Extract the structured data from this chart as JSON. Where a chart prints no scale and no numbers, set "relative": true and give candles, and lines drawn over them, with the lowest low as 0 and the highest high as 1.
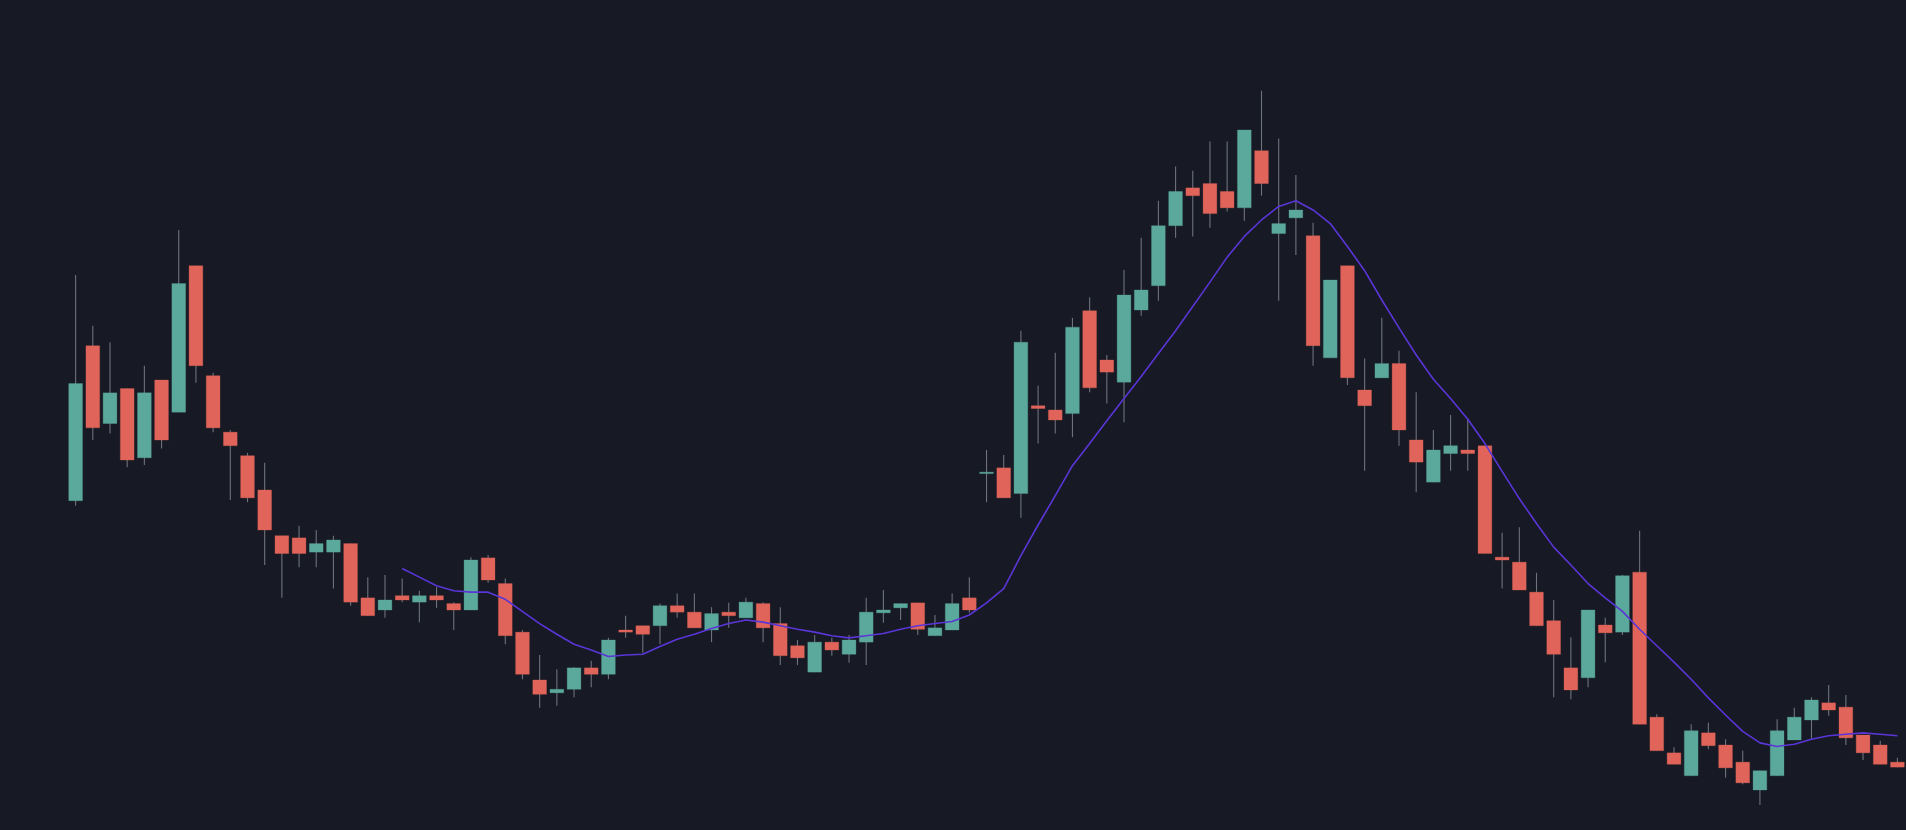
{
  "chart_data": {
    "type": "candlestick",
    "relative": true,
    "categories": [
      null,
      null,
      null,
      null,
      null,
      null,
      null,
      null,
      null,
      null,
      null,
      null,
      null,
      null,
      null,
      null,
      null,
      null,
      null,
      null,
      null,
      null,
      null,
      null,
      null,
      null,
      null,
      null,
      null,
      null,
      null,
      null,
      null,
      null,
      null,
      null,
      null,
      null,
      null,
      null,
      null,
      null,
      null,
      null,
      null,
      null,
      null,
      null,
      null,
      null,
      null,
      null,
      null,
      null,
      null,
      null,
      null,
      null,
      null,
      null,
      null,
      null,
      null,
      null,
      null,
      null,
      null,
      null,
      null,
      null,
      null,
      null,
      null,
      null,
      null,
      null,
      null,
      null,
      null,
      null,
      null,
      null,
      null,
      null,
      null,
      null,
      null,
      null,
      null,
      null,
      null,
      null,
      null,
      null,
      null,
      null,
      null,
      null,
      null,
      null,
      null,
      null,
      null,
      null,
      null,
      null,
      null
    ],
    "ohlc": [
      [
        0.426,
        0.742,
        0.419,
        0.59
      ],
      [
        0.643,
        0.671,
        0.511,
        0.528
      ],
      [
        0.534,
        0.648,
        0.52,
        0.577
      ],
      [
        0.583,
        0.583,
        0.473,
        0.483
      ],
      [
        0.486,
        0.615,
        0.476,
        0.577
      ],
      [
        0.595,
        0.595,
        0.499,
        0.511
      ],
      [
        0.55,
        0.805,
        0.55,
        0.73
      ],
      [
        0.755,
        0.755,
        0.591,
        0.615
      ],
      [
        0.601,
        0.605,
        0.522,
        0.528
      ],
      [
        0.522,
        0.525,
        0.427,
        0.503
      ],
      [
        0.489,
        0.493,
        0.424,
        0.43
      ],
      [
        0.441,
        0.479,
        0.336,
        0.385
      ],
      [
        0.377,
        0.377,
        0.29,
        0.352
      ],
      [
        0.374,
        0.391,
        0.333,
        0.352
      ],
      [
        0.354,
        0.385,
        0.333,
        0.366
      ],
      [
        0.354,
        0.377,
        0.303,
        0.371
      ],
      [
        0.366,
        0.366,
        0.279,
        0.284
      ],
      [
        0.29,
        0.319,
        0.265,
        0.265
      ],
      [
        0.273,
        0.322,
        0.262,
        0.287
      ],
      [
        0.293,
        0.317,
        0.284,
        0.287
      ],
      [
        0.284,
        0.3,
        0.256,
        0.293
      ],
      [
        0.293,
        0.305,
        0.276,
        0.287
      ],
      [
        0.282,
        0.284,
        0.245,
        0.273
      ],
      [
        0.273,
        0.347,
        0.273,
        0.343
      ],
      [
        0.346,
        0.35,
        0.311,
        0.315
      ],
      [
        0.31,
        0.317,
        0.225,
        0.237
      ],
      [
        0.242,
        0.245,
        0.176,
        0.183
      ],
      [
        0.175,
        0.21,
        0.136,
        0.155
      ],
      [
        0.157,
        0.19,
        0.139,
        0.162
      ],
      [
        0.162,
        0.193,
        0.151,
        0.192
      ],
      [
        0.192,
        0.202,
        0.165,
        0.183
      ],
      [
        0.183,
        0.234,
        0.176,
        0.231
      ],
      [
        0.245,
        0.265,
        0.234,
        0.242
      ],
      [
        0.251,
        0.251,
        0.213,
        0.239
      ],
      [
        0.251,
        0.282,
        0.225,
        0.279
      ],
      [
        0.279,
        0.296,
        0.262,
        0.27
      ],
      [
        0.27,
        0.296,
        0.248,
        0.248
      ],
      [
        0.245,
        0.277,
        0.228,
        0.268
      ],
      [
        0.27,
        0.283,
        0.248,
        0.265
      ],
      [
        0.262,
        0.29,
        0.262,
        0.284
      ],
      [
        0.282,
        0.284,
        0.228,
        0.248
      ],
      [
        0.254,
        0.277,
        0.196,
        0.209
      ],
      [
        0.223,
        0.231,
        0.196,
        0.206
      ],
      [
        0.186,
        0.238,
        0.186,
        0.228
      ],
      [
        0.228,
        0.234,
        0.209,
        0.217
      ],
      [
        0.211,
        0.238,
        0.199,
        0.231
      ],
      [
        0.228,
        0.29,
        0.196,
        0.27
      ],
      [
        0.269,
        0.301,
        0.255,
        0.273
      ],
      [
        0.276,
        0.282,
        0.259,
        0.282
      ],
      [
        0.283,
        0.283,
        0.238,
        0.246
      ],
      [
        0.237,
        0.266,
        0.237,
        0.248
      ],
      [
        0.245,
        0.296,
        0.245,
        0.282
      ],
      [
        0.29,
        0.319,
        0.269,
        0.273
      ],
      [
        0.464,
        0.497,
        0.424,
        0.466
      ],
      [
        0.472,
        0.49,
        0.43,
        0.43
      ],
      [
        0.436,
        0.664,
        0.402,
        0.648
      ],
      [
        0.559,
        0.587,
        0.506,
        0.555
      ],
      [
        0.553,
        0.633,
        0.52,
        0.539
      ],
      [
        0.548,
        0.682,
        0.515,
        0.669
      ],
      [
        0.692,
        0.711,
        0.578,
        0.584
      ],
      [
        0.623,
        0.63,
        0.562,
        0.606
      ],
      [
        0.592,
        0.749,
        0.536,
        0.714
      ],
      [
        0.693,
        0.794,
        0.685,
        0.721
      ],
      [
        0.727,
        0.846,
        0.706,
        0.811
      ],
      [
        0.811,
        0.894,
        0.794,
        0.859
      ],
      [
        0.864,
        0.888,
        0.796,
        0.853
      ],
      [
        0.87,
        0.929,
        0.808,
        0.828
      ],
      [
        0.859,
        0.929,
        0.831,
        0.836
      ],
      [
        0.836,
        0.945,
        0.818,
        0.945
      ],
      [
        0.916,
        1,
        0.853,
        0.87
      ],
      [
        0.8,
        0.933,
        0.706,
        0.814
      ],
      [
        0.822,
        0.882,
        0.77,
        0.833
      ],
      [
        0.797,
        0.815,
        0.615,
        0.643
      ],
      [
        0.626,
        0.735,
        0.626,
        0.735
      ],
      [
        0.755,
        0.755,
        0.588,
        0.598
      ],
      [
        0.581,
        0.625,
        0.468,
        0.559
      ],
      [
        0.598,
        0.682,
        0.598,
        0.618
      ],
      [
        0.618,
        0.636,
        0.503,
        0.525
      ],
      [
        0.511,
        0.578,
        0.438,
        0.48
      ],
      [
        0.452,
        0.525,
        0.452,
        0.497
      ],
      [
        0.492,
        0.546,
        0.468,
        0.503
      ],
      [
        0.497,
        0.541,
        0.468,
        0.492
      ],
      [
        0.503,
        0.503,
        0.352,
        0.352
      ],
      [
        0.347,
        0.381,
        0.303,
        0.343
      ],
      [
        0.34,
        0.389,
        0.301,
        0.301
      ],
      [
        0.298,
        0.325,
        0.251,
        0.251
      ],
      [
        0.258,
        0.287,
        0.151,
        0.211
      ],
      [
        0.192,
        0.235,
        0.148,
        0.161
      ],
      [
        0.178,
        0.273,
        0.165,
        0.273
      ],
      [
        0.252,
        0.262,
        0.2,
        0.241
      ],
      [
        0.242,
        0.322,
        0.238,
        0.321
      ],
      [
        0.326,
        0.384,
        0.113,
        0.113
      ],
      [
        0.123,
        0.127,
        0.076,
        0.076
      ],
      [
        0.073,
        0.081,
        0.057,
        0.057
      ],
      [
        0.041,
        0.113,
        0.041,
        0.104
      ],
      [
        0.101,
        0.115,
        0.078,
        0.083
      ],
      [
        0.084,
        0.092,
        0.038,
        0.052
      ],
      [
        0.06,
        0.076,
        0.029,
        0.031
      ],
      [
        0.021,
        0.048,
        0,
        0.048
      ],
      [
        0.041,
        0.12,
        0.041,
        0.104
      ],
      [
        0.091,
        0.136,
        0.091,
        0.123
      ],
      [
        0.119,
        0.151,
        0.092,
        0.147
      ],
      [
        0.143,
        0.168,
        0.125,
        0.133
      ],
      [
        0.137,
        0.154,
        0.084,
        0.094
      ],
      [
        0.098,
        0.098,
        0.063,
        0.073
      ],
      [
        0.084,
        0.09,
        0.057,
        0.057
      ],
      [
        0.06,
        0.066,
        0.053,
        0.053
      ]
    ],
    "colors": [
      "#5ba89c",
      "#e0645a",
      "#5ba89c",
      "#e0645a",
      "#5ba89c",
      "#e0645a",
      "#5ba89c",
      "#e0645a",
      "#e0645a",
      "#e0645a",
      "#e0645a",
      "#e0645a",
      "#e0645a",
      "#e0645a",
      "#5ba89c",
      "#5ba89c",
      "#e0645a",
      "#e0645a",
      "#5ba89c",
      "#e0645a",
      "#5ba89c",
      "#e0645a",
      "#e0645a",
      "#5ba89c",
      "#e0645a",
      "#e0645a",
      "#e0645a",
      "#e0645a",
      "#5ba89c",
      "#5ba89c",
      "#e0645a",
      "#5ba89c",
      "#e0645a",
      "#e0645a",
      "#5ba89c",
      "#e0645a",
      "#e0645a",
      "#5ba89c",
      "#e0645a",
      "#5ba89c",
      "#e0645a",
      "#e0645a",
      "#e0645a",
      "#5ba89c",
      "#e0645a",
      "#5ba89c",
      "#5ba89c",
      "#5ba89c",
      "#5ba89c",
      "#e0645a",
      "#5ba89c",
      "#5ba89c",
      "#e0645a",
      "#5ba89c",
      "#e0645a",
      "#5ba89c",
      "#e0645a",
      "#e0645a",
      "#5ba89c",
      "#e0645a",
      "#e0645a",
      "#5ba89c",
      "#5ba89c",
      "#5ba89c",
      "#5ba89c",
      "#e0645a",
      "#e0645a",
      "#e0645a",
      "#5ba89c",
      "#e0645a",
      "#5ba89c",
      "#5ba89c",
      "#e0645a",
      "#5ba89c",
      "#e0645a",
      "#e0645a",
      "#5ba89c",
      "#e0645a",
      "#e0645a",
      "#5ba89c",
      "#5ba89c",
      "#e0645a",
      "#e0645a",
      "#e0645a",
      "#e0645a",
      "#e0645a",
      "#e0645a",
      "#e0645a",
      "#5ba89c",
      "#e0645a",
      "#5ba89c",
      "#e0645a",
      "#e0645a",
      "#e0645a",
      "#5ba89c",
      "#e0645a",
      "#e0645a",
      "#e0645a",
      "#5ba89c",
      "#5ba89c",
      "#5ba89c",
      "#5ba89c",
      "#e0645a",
      "#e0645a",
      "#e0645a",
      "#e0645a",
      "#e0645a"
    ],
    "series": [
      {
        "type": "line",
        "color": "#5a35d8",
        "values": [
          null,
          null,
          null,
          null,
          null,
          null,
          null,
          null,
          null,
          null,
          null,
          null,
          null,
          null,
          null,
          null,
          null,
          null,
          null,
          0.331,
          0.319,
          0.307,
          0.3,
          0.298,
          0.298,
          0.288,
          0.271,
          0.254,
          0.239,
          0.225,
          0.217,
          0.208,
          0.21,
          0.211,
          0.222,
          0.232,
          0.239,
          0.247,
          0.254,
          0.259,
          0.256,
          0.251,
          0.246,
          0.242,
          0.237,
          0.234,
          0.237,
          0.24,
          0.246,
          0.251,
          0.254,
          0.257,
          0.266,
          0.283,
          0.303,
          0.349,
          0.392,
          0.433,
          0.475,
          0.506,
          0.538,
          0.569,
          0.6,
          0.632,
          0.664,
          0.698,
          0.732,
          0.767,
          0.796,
          0.819,
          0.838,
          0.846,
          0.833,
          0.814,
          0.782,
          0.748,
          0.707,
          0.668,
          0.63,
          0.596,
          0.569,
          0.54,
          0.506,
          0.467,
          0.429,
          0.394,
          0.361,
          0.336,
          0.31,
          0.29,
          0.271,
          0.246,
          0.223,
          0.2,
          0.176,
          0.15,
          0.126,
          0.103,
          0.087,
          0.082,
          0.085,
          0.092,
          0.097,
          0.099,
          0.101,
          0.099,
          0.097
        ]
      }
    ]
  }
}
